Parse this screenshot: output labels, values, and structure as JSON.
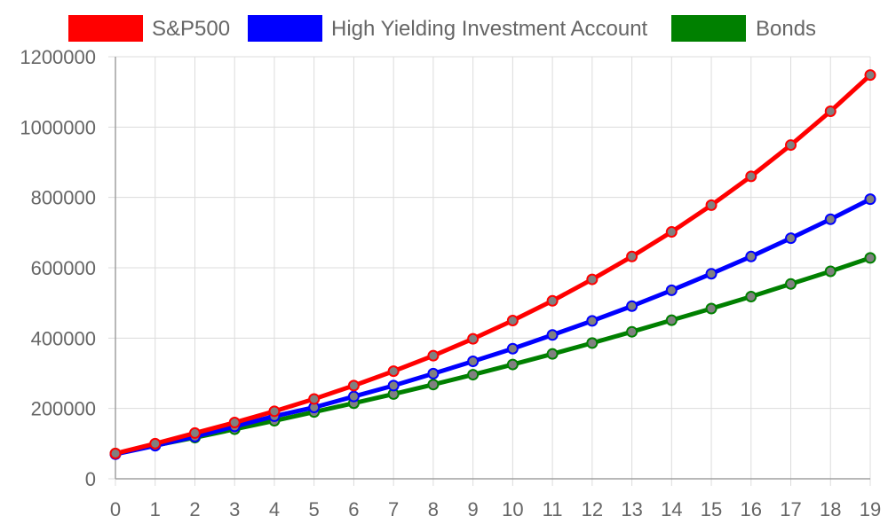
{
  "chart_data": {
    "type": "line",
    "x": [
      0,
      1,
      2,
      3,
      4,
      5,
      6,
      7,
      8,
      9,
      10,
      11,
      12,
      13,
      14,
      15,
      16,
      17,
      18,
      19
    ],
    "series": [
      {
        "name": "S&P500",
        "color": "#ff0000",
        "values": [
          72000,
          100000,
          130000,
          160000,
          192000,
          227000,
          265000,
          306000,
          350000,
          398000,
          450000,
          506000,
          567000,
          632000,
          702000,
          778000,
          860000,
          949000,
          1045000,
          1148000
        ]
      },
      {
        "name": "High Yielding Investment Account",
        "color": "#0000ff",
        "values": [
          70000,
          94000,
          120000,
          149000,
          178000,
          203000,
          234000,
          265000,
          299000,
          334000,
          370000,
          409000,
          449000,
          491000,
          536000,
          583000,
          632000,
          684000,
          738000,
          795000
        ]
      },
      {
        "name": "Bonds",
        "color": "#008000",
        "values": [
          72000,
          95000,
          117000,
          141000,
          165000,
          190000,
          215000,
          241000,
          268000,
          296000,
          325000,
          355000,
          386000,
          418000,
          451000,
          484000,
          518000,
          554000,
          590000,
          628000
        ]
      }
    ],
    "ylim": [
      0,
      1200000
    ],
    "yticks": [
      "0",
      "200000",
      "400000",
      "600000",
      "800000",
      "1000000",
      "1200000"
    ],
    "xticks": [
      "0",
      "1",
      "2",
      "3",
      "4",
      "5",
      "6",
      "7",
      "8",
      "9",
      "10",
      "11",
      "12",
      "13",
      "14",
      "15",
      "16",
      "17",
      "18",
      "19"
    ],
    "grid": true,
    "legend_position": "top"
  }
}
